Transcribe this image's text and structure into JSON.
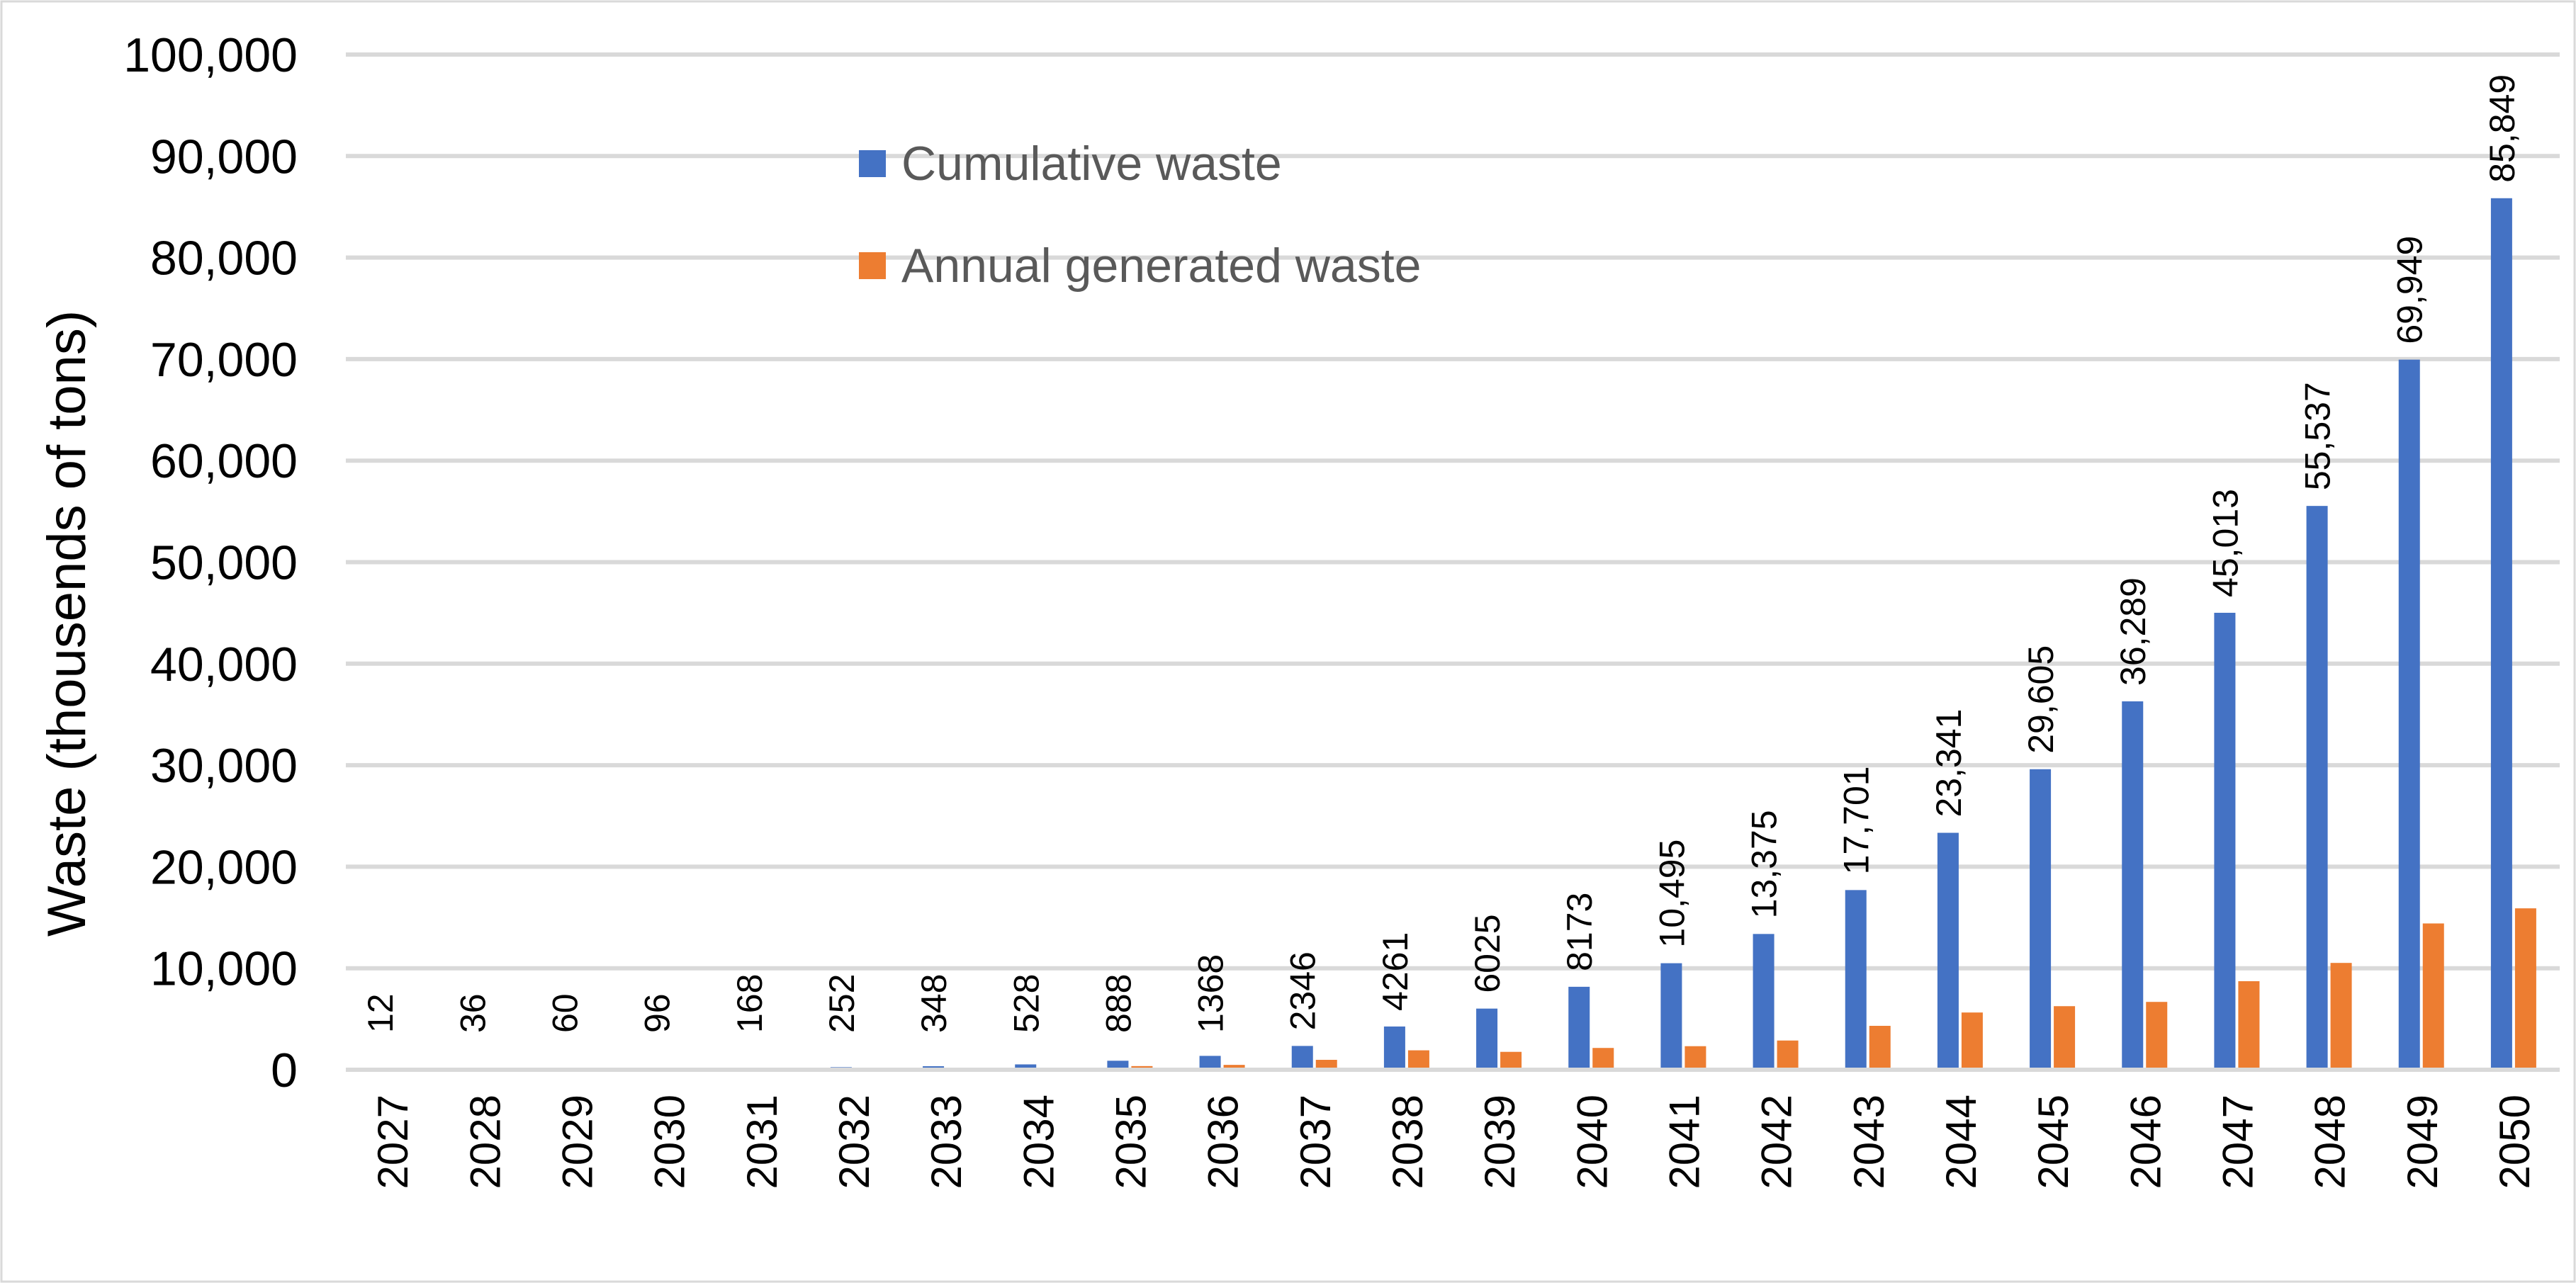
{
  "chart_data": {
    "type": "bar",
    "title": "",
    "xlabel": "",
    "ylabel": "Waste (thousends of tons)",
    "ylim": [
      0,
      100000
    ],
    "ytick_values": [
      0,
      10000,
      20000,
      30000,
      40000,
      50000,
      60000,
      70000,
      80000,
      90000,
      100000
    ],
    "ytick_labels": [
      "0",
      "10,000",
      "20,000",
      "30,000",
      "40,000",
      "50,000",
      "60,000",
      "70,000",
      "80,000",
      "90,000",
      "100,000"
    ],
    "grid": true,
    "legend_position": "top-center",
    "categories": [
      "2027",
      "2028",
      "2029",
      "2030",
      "2031",
      "2032",
      "2033",
      "2034",
      "2035",
      "2036",
      "2037",
      "2038",
      "2039",
      "2040",
      "2041",
      "2042",
      "2043",
      "2044",
      "2045",
      "2046",
      "2047",
      "2048",
      "2049",
      "2050"
    ],
    "series": [
      {
        "name": "Cumulative waste",
        "color": "#4472c4",
        "values": [
          12,
          36,
          60,
          96,
          168,
          252,
          348,
          528,
          888,
          1368,
          2346,
          4261,
          6025,
          8173,
          10495,
          13375,
          17701,
          23341,
          29605,
          36289,
          45013,
          55537,
          69949,
          85849
        ],
        "data_labels": [
          "12",
          "36",
          "60",
          "96",
          "168",
          "252",
          "348",
          "528",
          "888",
          "1368",
          "2346",
          "4261",
          "6025",
          "8173",
          "10,495",
          "13,375",
          "17,701",
          "23,341",
          "29,605",
          "36,289",
          "45,013",
          "55,537",
          "69,949",
          "85,849"
        ]
      },
      {
        "name": "Annual generated waste",
        "color": "#ed7d31",
        "values": [
          12,
          24,
          24,
          36,
          72,
          84,
          96,
          180,
          360,
          480,
          978,
          1915,
          1764,
          2148,
          2322,
          2880,
          4326,
          5640,
          6264,
          6684,
          8724,
          10524,
          14412,
          15900
        ]
      }
    ]
  }
}
